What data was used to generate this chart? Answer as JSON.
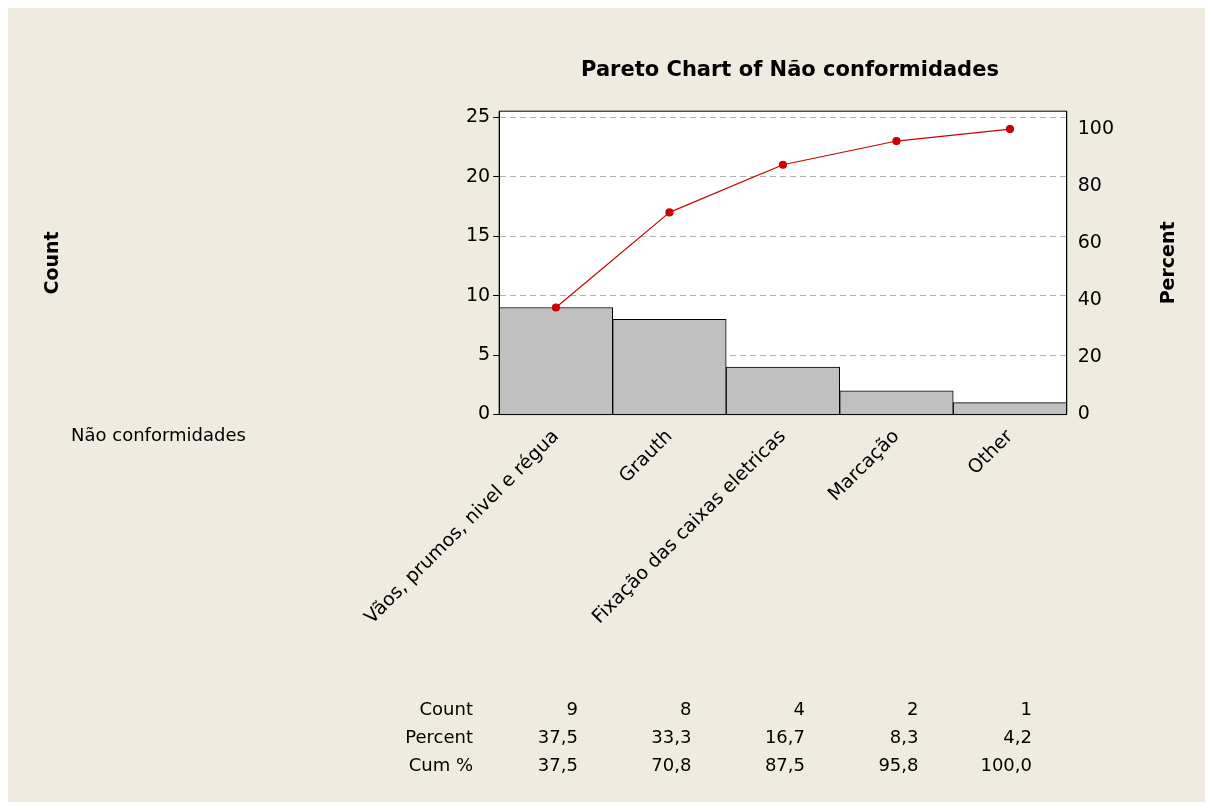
{
  "chart_data": {
    "type": "bar",
    "title": "Pareto Chart of Não conformidades",
    "y2label": "Percent",
    "categories": [
      "Vãos, prumos, nivel e régua",
      "Grauth",
      "Fixação das caixas eletricas",
      "Marcação",
      "Other"
    ],
    "series": [
      {
        "color": "#c0c0c0",
        "values": [
          9,
          8,
          4,
          2,
          1
        ],
        "value_labels": [
          "9",
          "8",
          "4",
          "2",
          "1"
        ]
      },
      {
        "type": "line",
        "axis": "y2",
        "color": "#cc0000",
        "values": [
          37.5,
          70.8,
          87.5,
          95.8,
          100
        ],
        "value_labels": [
          "37,5",
          "70,8",
          "87,5",
          "95,8",
          "100,0"
        ]
      }
    ],
    "annotations": [
      "Count",
      "Não conformidades",
      "Count",
      "Percent",
      "Cum %",
      "37,5",
      "33,3",
      "16,7",
      "8,3",
      "4,2"
    ],
    "ylim": [
      0,
      25.5
    ],
    "yticks": [
      0,
      5,
      10,
      15,
      20,
      25
    ],
    "y2lim": [
      0,
      106.25
    ],
    "y2ticks": [
      0,
      20,
      40,
      60,
      80,
      100
    ],
    "grid": "y",
    "marker": "circle",
    "line_style": "solid"
  }
}
